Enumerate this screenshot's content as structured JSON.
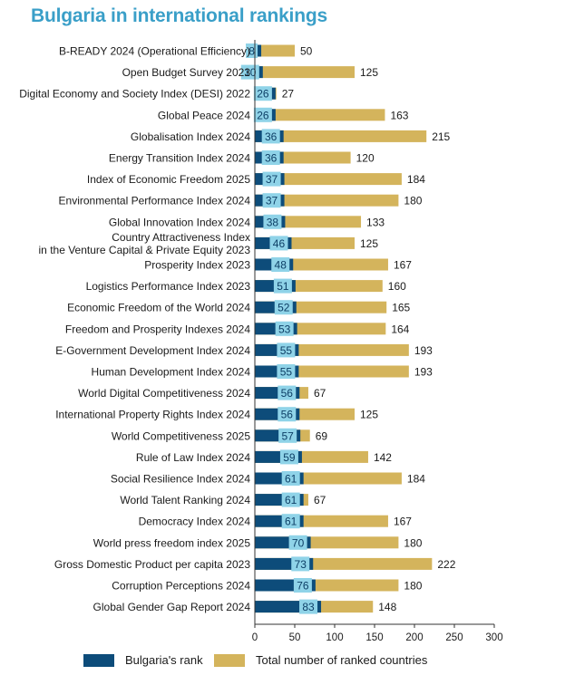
{
  "title": "Bulgaria in international rankings",
  "colors": {
    "title": "#3a9fc8",
    "rank_bar": "#0d4c7a",
    "total_bar": "#d4b45c",
    "rank_badge": "#8fd3e8"
  },
  "chart_data": {
    "type": "bar",
    "orientation": "horizontal",
    "stacked": true,
    "title": "Bulgaria in international rankings",
    "xlim": [
      0,
      300
    ],
    "xticks": [
      0,
      50,
      100,
      150,
      200,
      250,
      300
    ],
    "grid": false,
    "legend_position": "bottom",
    "categories": [
      "B-READY 2024 (Operational Efficiency)",
      "Open Budget Survey 2023",
      "Digital Economy and Society Index (DESI) 2022",
      "Global Peace 2024",
      "Globalisation Index 2024",
      "Energy Transition Index 2024",
      "Index of Economic Freedom 2025",
      "Environmental Performance Index 2024",
      "Global Innovation Index 2024",
      "Country Attractiveness Index\nin the Venture Capital & Private Equity 2023",
      "Prosperity Index 2023",
      "Logistics Performance Index 2023",
      "Economic Freedom of the World 2024",
      "Freedom and Prosperity Indexes 2024",
      "E-Government Development Index 2024",
      "Human Development Index 2024",
      "World Digital Competitiveness 2024",
      "International Property Rights Index 2024",
      "World Competitiveness 2025",
      "Rule of Law Index 2024",
      "Social Resilience Index 2024",
      "World Talent Ranking 2024",
      "Democracy Index 2024",
      "World press freedom index 2025",
      "Gross Domestic Product per capita 2023",
      "Corruption Perceptions 2024",
      "Global Gender Gap Report 2024"
    ],
    "series": [
      {
        "name": "Bulgaria's rank",
        "values": [
          8,
          10,
          26,
          26,
          36,
          36,
          37,
          37,
          38,
          46,
          48,
          51,
          52,
          53,
          55,
          55,
          56,
          56,
          57,
          59,
          61,
          61,
          61,
          70,
          73,
          76,
          83
        ]
      },
      {
        "name": "Total number of ranked countries",
        "values": [
          50,
          125,
          27,
          163,
          215,
          120,
          184,
          180,
          133,
          125,
          167,
          160,
          165,
          164,
          193,
          193,
          67,
          125,
          69,
          142,
          184,
          67,
          167,
          180,
          222,
          180,
          148
        ]
      }
    ]
  }
}
